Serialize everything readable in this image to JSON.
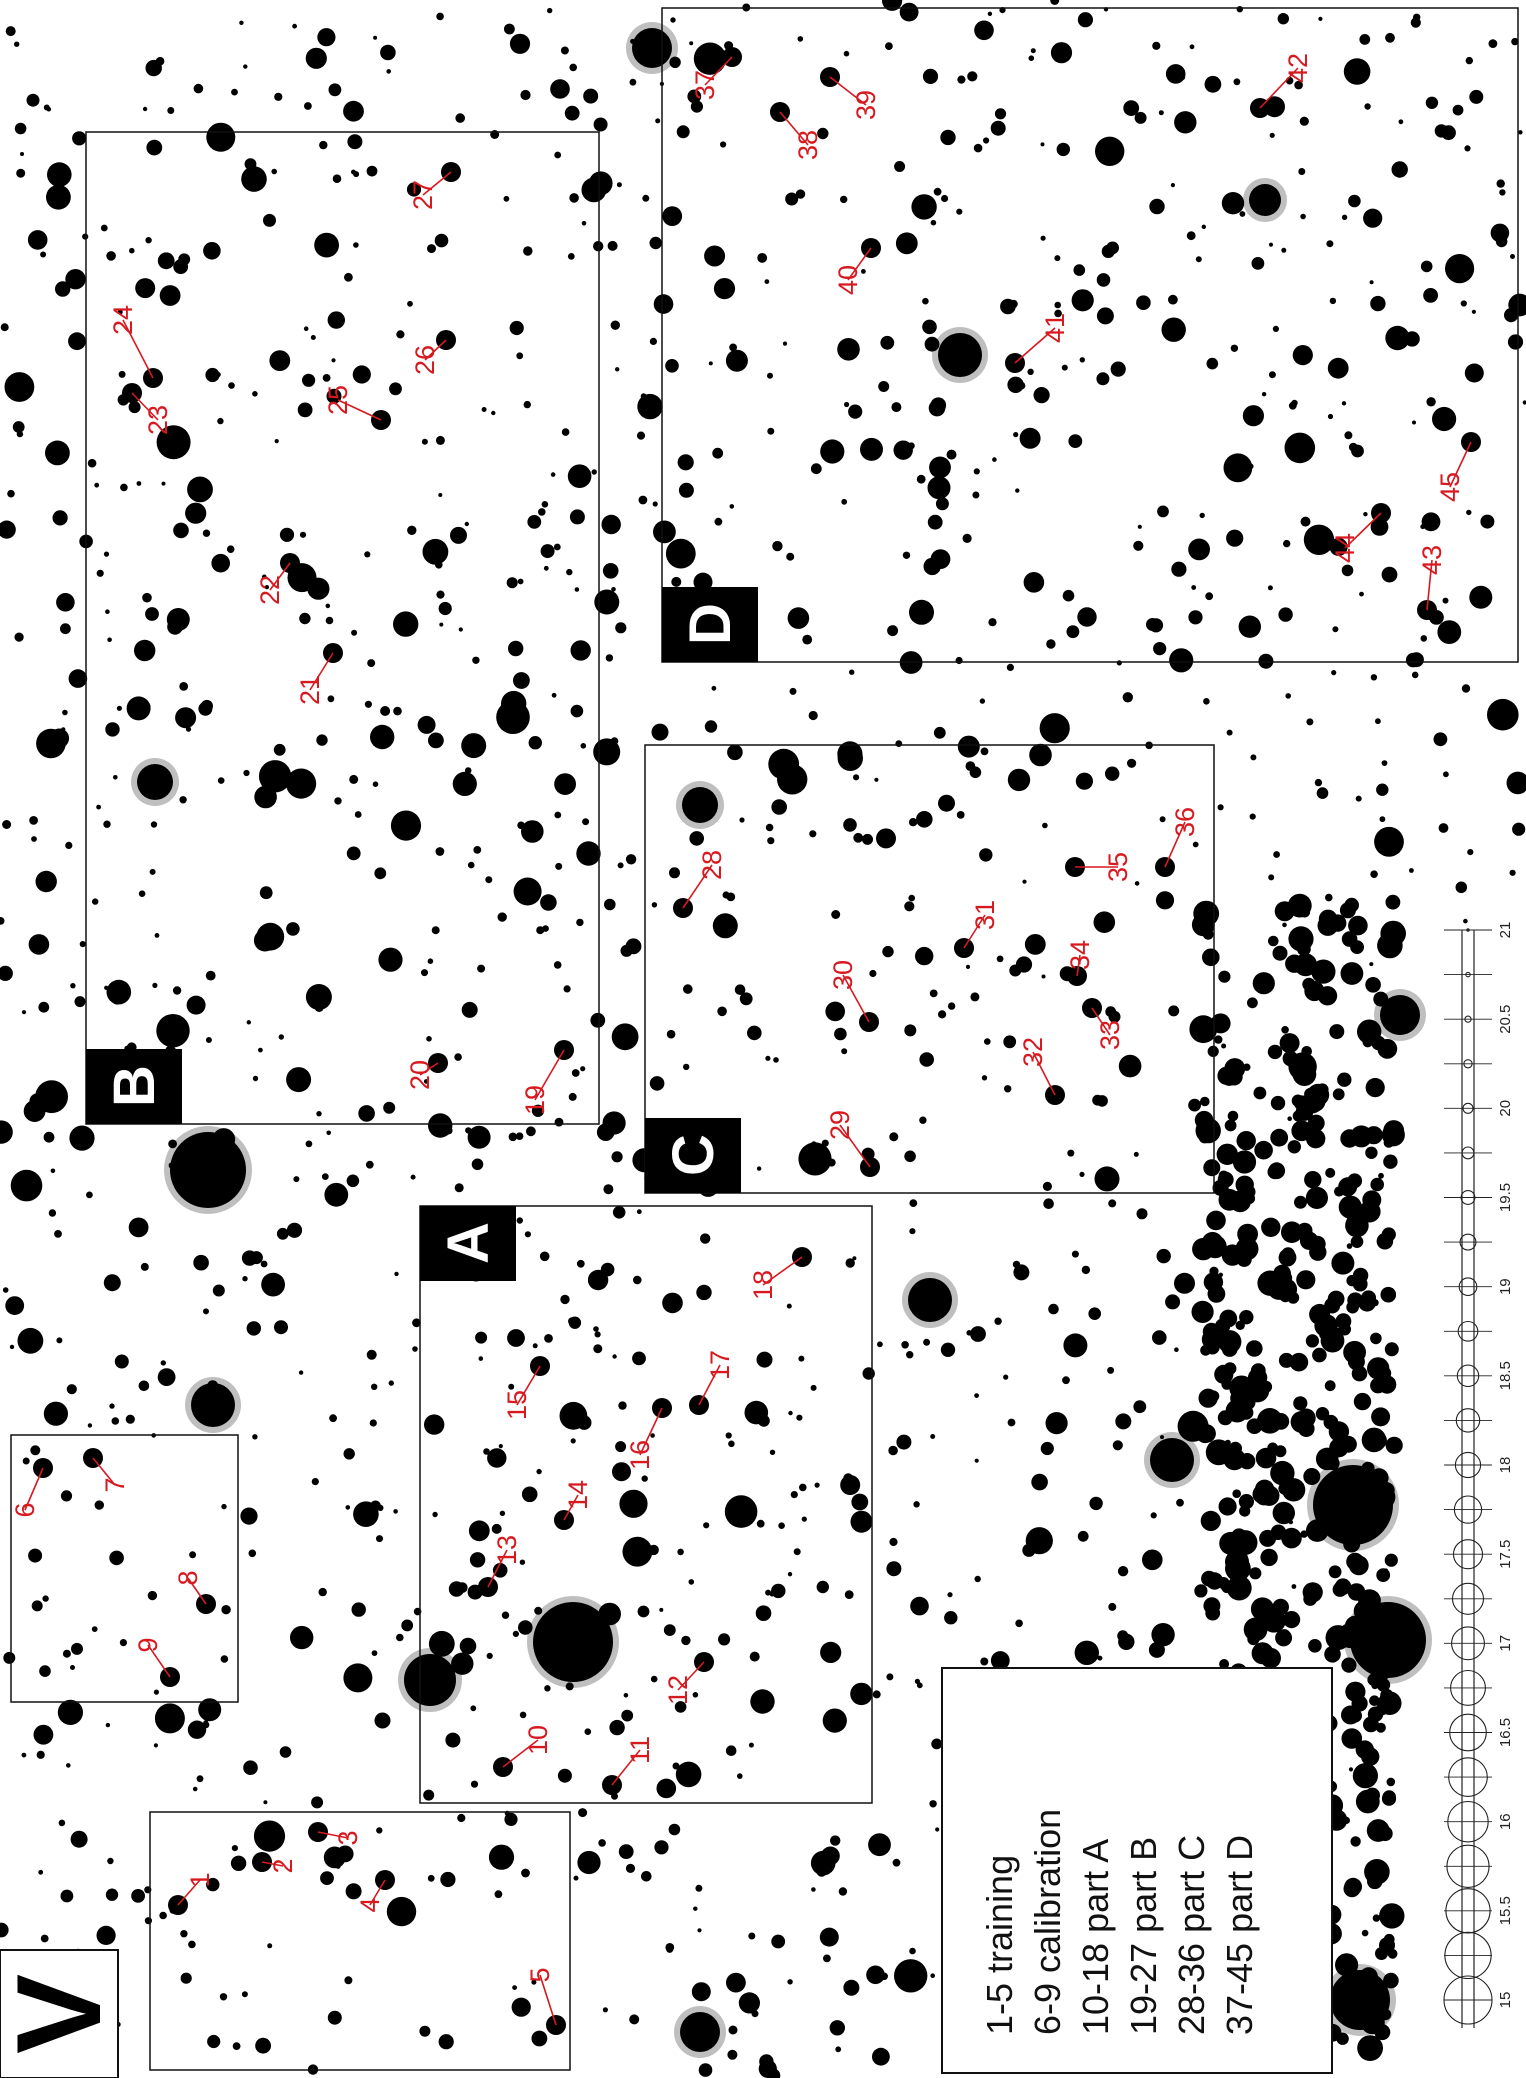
{
  "band_label": "V",
  "colors": {
    "star": "#000000",
    "label": "#d71920",
    "box": "#111111",
    "background": "#ffffff"
  },
  "regions": [
    {
      "name": "A",
      "label": "A"
    },
    {
      "name": "B",
      "label": "B"
    },
    {
      "name": "C",
      "label": "C"
    },
    {
      "name": "D",
      "label": "D"
    }
  ],
  "legend": {
    "lines": [
      "1-5 training",
      "6-9 calibration",
      "10-18 part A",
      "19-27 part B",
      "28-36 part C",
      "37-45 part D"
    ]
  },
  "scale": {
    "tick_labels": [
      "15",
      "15.5",
      "16",
      "16.5",
      "17",
      "17.5",
      "18",
      "18.5",
      "19",
      "19.5",
      "20",
      "20.5",
      "21"
    ]
  },
  "numbered_stars": [
    "1",
    "2",
    "3",
    "4",
    "5",
    "6",
    "7",
    "8",
    "9",
    "10",
    "11",
    "12",
    "13",
    "14",
    "15",
    "16",
    "17",
    "18",
    "19",
    "20",
    "21",
    "22",
    "23",
    "24",
    "25",
    "26",
    "27",
    "28",
    "29",
    "30",
    "31",
    "32",
    "33",
    "34",
    "35",
    "36",
    "37",
    "38",
    "39",
    "40",
    "41",
    "42",
    "43",
    "44",
    "45"
  ]
}
